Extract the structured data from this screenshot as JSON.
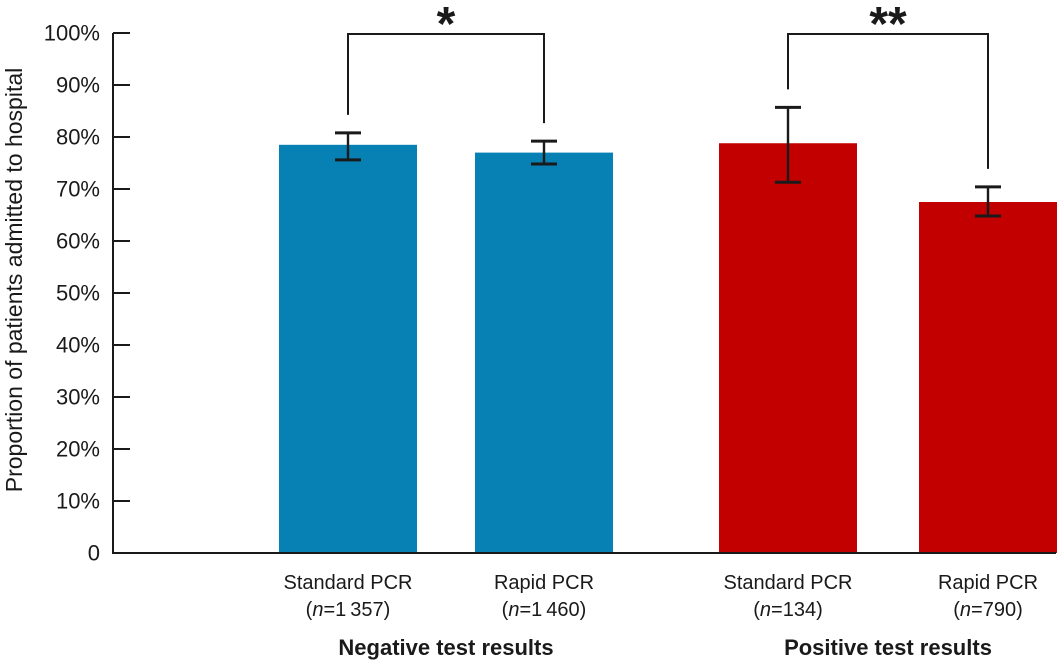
{
  "chart_data": {
    "type": "bar",
    "ylabel": "Proportion of patients admitted to hospital",
    "ylim": [
      0,
      100
    ],
    "grid": false,
    "legend": "none",
    "axis_color": "#1a1a1a",
    "error_bar_color": "#1a1a1a",
    "y_ticks": [
      {
        "value": 100,
        "label": "100%"
      },
      {
        "value": 90,
        "label": "90%"
      },
      {
        "value": 80,
        "label": "80%"
      },
      {
        "value": 70,
        "label": "70%"
      },
      {
        "value": 60,
        "label": "60%"
      },
      {
        "value": 50,
        "label": "50%"
      },
      {
        "value": 40,
        "label": "40%"
      },
      {
        "value": 30,
        "label": "30%"
      },
      {
        "value": 20,
        "label": "20%"
      },
      {
        "value": 10,
        "label": "10%"
      },
      {
        "value": 0,
        "label": "0"
      }
    ],
    "groups": [
      {
        "label": "Negative test results",
        "color": "#0780b4",
        "bars": [
          {
            "category": "Standard PCR",
            "n_label": "(n=1 357)",
            "value": 78.5,
            "ci_low": 75.6,
            "ci_high": 80.8
          },
          {
            "category": "Rapid PCR",
            "n_label": "(n=1 460)",
            "value": 77.0,
            "ci_low": 74.8,
            "ci_high": 79.2
          }
        ]
      },
      {
        "label": "Positive test results",
        "color": "#c20000",
        "bars": [
          {
            "category": "Standard PCR",
            "n_label": "(n=134)",
            "value": 78.8,
            "ci_low": 71.3,
            "ci_high": 85.7
          },
          {
            "category": "Rapid PCR",
            "n_label": "(n=790)",
            "value": 67.5,
            "ci_low": 64.8,
            "ci_high": 70.4
          }
        ]
      }
    ],
    "significance_markers": [
      {
        "label": "*",
        "group": 0,
        "between": [
          0,
          1
        ]
      },
      {
        "label": "**",
        "group": 1,
        "between": [
          0,
          1
        ]
      }
    ]
  }
}
